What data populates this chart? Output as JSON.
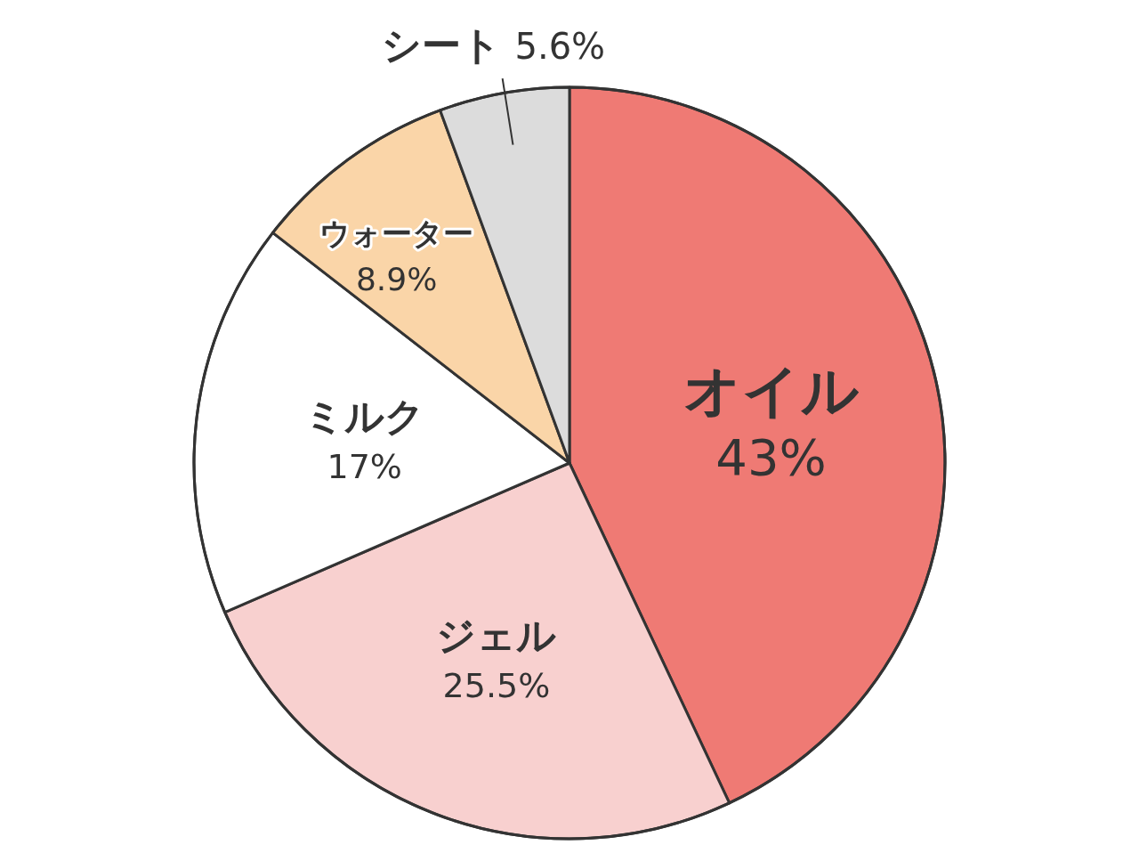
{
  "chart_data": {
    "type": "pie",
    "categories": [
      "オイル",
      "ジェル",
      "ミルク",
      "ウォーター",
      "シート"
    ],
    "values": [
      43,
      25.5,
      17,
      8.9,
      5.6
    ],
    "value_labels": [
      "43%",
      "25.5%",
      "17%",
      "8.9%",
      "5.6%"
    ],
    "colors": [
      "#ef7a74",
      "#f8d0cf",
      "#ffffff",
      "#fad5a8",
      "#dcdcdc"
    ]
  }
}
